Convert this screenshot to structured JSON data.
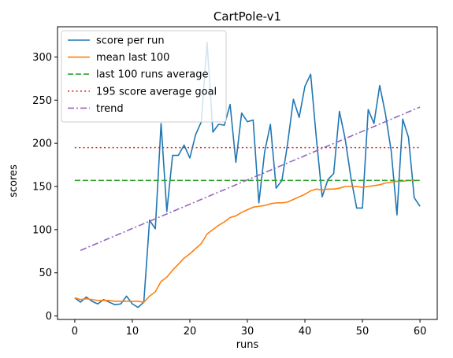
{
  "chart_data": {
    "type": "line",
    "title": "CartPole-v1",
    "xlabel": "runs",
    "ylabel": "scores",
    "xlim": [
      -3,
      63
    ],
    "ylim": [
      -4,
      335
    ],
    "xticks": [
      0,
      10,
      20,
      30,
      40,
      50,
      60
    ],
    "yticks": [
      0,
      50,
      100,
      150,
      200,
      250,
      300
    ],
    "grid": false,
    "legend_position": "top-left",
    "series": [
      {
        "name": "score per run",
        "style": "solid",
        "color": "#1f77b4",
        "x": [
          0,
          1,
          2,
          3,
          4,
          5,
          6,
          7,
          8,
          9,
          10,
          11,
          12,
          13,
          14,
          15,
          16,
          17,
          18,
          19,
          20,
          21,
          22,
          23,
          24,
          25,
          26,
          27,
          28,
          29,
          30,
          31,
          32,
          33,
          34,
          35,
          36,
          37,
          38,
          39,
          40,
          41,
          42,
          43,
          44,
          45,
          46,
          47,
          48,
          49,
          50,
          51,
          52,
          53,
          54,
          55,
          56,
          57,
          58,
          59,
          60
        ],
        "values": [
          21,
          16,
          22,
          17,
          14,
          19,
          16,
          13,
          14,
          23,
          14,
          10,
          16,
          111,
          101,
          223,
          121,
          186,
          186,
          198,
          183,
          210,
          225,
          317,
          213,
          222,
          221,
          245,
          178,
          235,
          225,
          227,
          131,
          190,
          222,
          148,
          157,
          200,
          251,
          230,
          266,
          280,
          205,
          138,
          158,
          165,
          237,
          205,
          160,
          125,
          125,
          239,
          223,
          267,
          234,
          191,
          117,
          228,
          207,
          137,
          127
        ]
      },
      {
        "name": "mean last 100",
        "style": "solid",
        "color": "#ff7f0e",
        "x": [
          0,
          1,
          2,
          3,
          4,
          5,
          6,
          7,
          8,
          9,
          10,
          11,
          12,
          13,
          14,
          15,
          16,
          17,
          18,
          19,
          20,
          21,
          22,
          23,
          24,
          25,
          26,
          27,
          28,
          29,
          30,
          31,
          32,
          33,
          34,
          35,
          36,
          37,
          38,
          39,
          40,
          41,
          42,
          43,
          44,
          45,
          46,
          47,
          48,
          49,
          50,
          51,
          52,
          53,
          54,
          55,
          56,
          57,
          58,
          59,
          60
        ],
        "values": [
          21,
          19,
          20,
          19,
          18,
          18,
          18,
          17,
          17,
          17,
          17,
          17,
          16,
          23,
          28,
          40,
          45,
          53,
          60,
          67,
          72,
          78,
          84,
          95,
          100,
          105,
          109,
          114,
          116,
          120,
          123,
          126,
          127,
          128,
          130,
          131,
          131,
          132,
          135,
          138,
          141,
          145,
          147,
          146,
          147,
          147,
          148,
          150,
          150,
          150,
          149,
          150,
          151,
          152,
          154,
          155,
          156,
          156,
          157,
          157,
          157
        ]
      },
      {
        "name": "last 100 runs average",
        "style": "dashed",
        "color": "#2ca02c",
        "x": [
          0,
          60
        ],
        "values": [
          157,
          157
        ]
      },
      {
        "name": "195 score average goal",
        "style": "dotted",
        "color": "#d62728",
        "x": [
          0,
          60
        ],
        "values": [
          195,
          195
        ]
      },
      {
        "name": "trend",
        "style": "dashdot",
        "color": "#9467bd",
        "x": [
          1,
          60
        ],
        "values": [
          76,
          242
        ]
      }
    ]
  }
}
